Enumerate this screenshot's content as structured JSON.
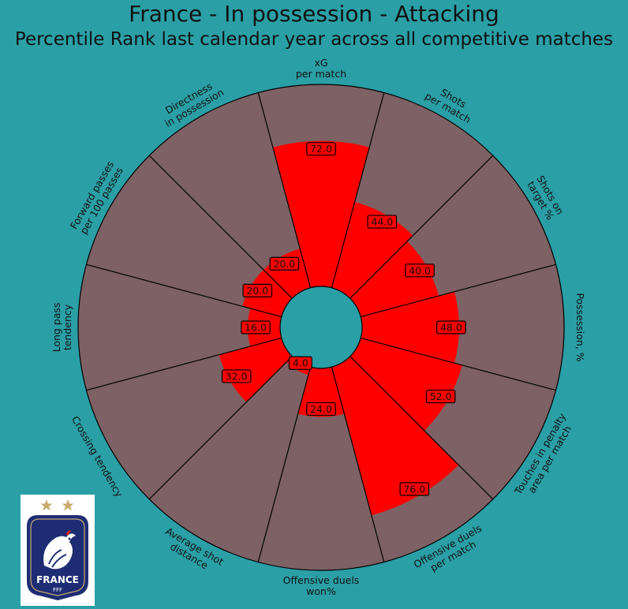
{
  "title": "France - In possession - Attacking",
  "subtitle": "Percentile Rank last calendar year across all competitive matches",
  "colors": {
    "background": "#2a9fa6",
    "slice_background": "#7e6164",
    "slice_value": "#ff0000",
    "slice_edge": "#000000"
  },
  "logo": {
    "text": "FRANCE",
    "subtext": "FFF"
  },
  "chart_data": {
    "type": "polar-bar",
    "title": "France - In possession - Attacking",
    "subtitle": "Percentile Rank last calendar year across all competitive matches",
    "ylim": [
      0,
      100
    ],
    "categories": [
      "xG\nper match",
      "Shots\nper match",
      "Shots on\ntarget %",
      "Possession, %",
      "Touches in penalty\narea per match",
      "Offensive duels\nper match",
      "Offensive duels\nwon%",
      "Average shot\ndistance",
      "Crossing tendency",
      "Long pass\ntendency",
      "Forward passes\nper 100 passes",
      "Directness\nin possession"
    ],
    "values": [
      72.0,
      44.0,
      40.0,
      48.0,
      52.0,
      76.0,
      24.0,
      4.0,
      32.0,
      16.0,
      20.0,
      20.0
    ],
    "value_labels": [
      "72.0",
      "44.0",
      "40.0",
      "48.0",
      "52.0",
      "76.0",
      "24.0",
      "4.0",
      "32.0",
      "16.0",
      "20.0",
      "20.0"
    ]
  }
}
